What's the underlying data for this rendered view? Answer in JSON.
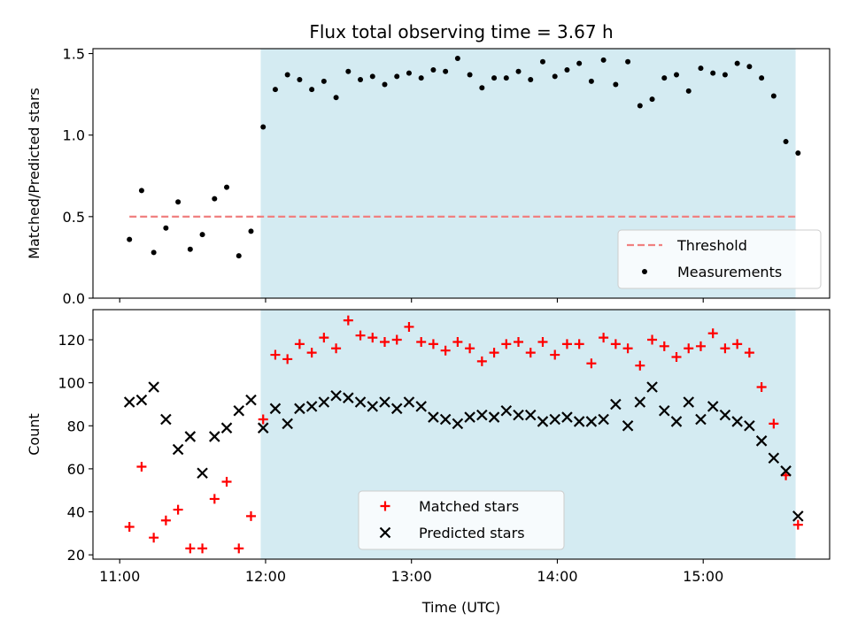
{
  "chart_data": [
    {
      "type": "scatter",
      "title": "Flux total observing time = 3.67 h",
      "xlabel": "",
      "ylabel": "Matched/Predicted stars",
      "ylim": [
        0,
        1.53
      ],
      "yticks": [
        0.0,
        0.5,
        1.0,
        1.5
      ],
      "ytick_labels": [
        "0.0",
        "0.5",
        "1.0",
        "1.5"
      ],
      "xlim": [
        "10:49",
        "15:52"
      ],
      "shaded_span": [
        "11:58",
        "15:38"
      ],
      "shade_color": "#d4ebf2",
      "legend": {
        "placement": "lower-right",
        "entries": [
          "Threshold",
          "Measurements"
        ]
      },
      "threshold": {
        "name": "Threshold",
        "value": 0.5,
        "x_start": "11:04",
        "x_end": "15:38",
        "color": "#f08080",
        "style": "dashed"
      },
      "series": [
        {
          "name": "Measurements",
          "color": "#000000",
          "marker": "dot",
          "x": [
            "11:04",
            "11:09",
            "11:14",
            "11:19",
            "11:24",
            "11:29",
            "11:34",
            "11:39",
            "11:44",
            "11:49",
            "11:54",
            "11:59",
            "12:04",
            "12:09",
            "12:14",
            "12:19",
            "12:24",
            "12:29",
            "12:34",
            "12:39",
            "12:44",
            "12:49",
            "12:54",
            "12:59",
            "13:04",
            "13:09",
            "13:14",
            "13:19",
            "13:24",
            "13:29",
            "13:34",
            "13:39",
            "13:44",
            "13:49",
            "13:54",
            "13:59",
            "14:04",
            "14:09",
            "14:14",
            "14:19",
            "14:24",
            "14:29",
            "14:34",
            "14:39",
            "14:44",
            "14:49",
            "14:54",
            "14:59",
            "15:04",
            "15:09",
            "15:14",
            "15:19",
            "15:24",
            "15:29",
            "15:34",
            "15:39"
          ],
          "y": [
            0.36,
            0.66,
            0.28,
            0.43,
            0.59,
            0.3,
            0.39,
            0.61,
            0.68,
            0.26,
            0.41,
            1.05,
            1.28,
            1.37,
            1.34,
            1.28,
            1.33,
            1.23,
            1.39,
            1.34,
            1.36,
            1.31,
            1.36,
            1.38,
            1.35,
            1.4,
            1.39,
            1.47,
            1.37,
            1.29,
            1.35,
            1.35,
            1.39,
            1.34,
            1.45,
            1.36,
            1.4,
            1.44,
            1.33,
            1.46,
            1.31,
            1.45,
            1.18,
            1.22,
            1.35,
            1.37,
            1.27,
            1.41,
            1.38,
            1.37,
            1.44,
            1.42,
            1.35,
            1.24,
            0.96,
            0.89
          ]
        }
      ]
    },
    {
      "type": "scatter",
      "title": "",
      "xlabel": "Time (UTC)",
      "ylabel": "Count",
      "ylim": [
        18,
        134
      ],
      "yticks": [
        20,
        40,
        60,
        80,
        100,
        120
      ],
      "ytick_labels": [
        "20",
        "40",
        "60",
        "80",
        "100",
        "120"
      ],
      "xlim": [
        "10:49",
        "15:52"
      ],
      "xticks": [
        "11:00",
        "12:00",
        "13:00",
        "14:00",
        "15:00"
      ],
      "xtick_labels": [
        "11:00",
        "12:00",
        "13:00",
        "14:00",
        "15:00"
      ],
      "shaded_span": [
        "11:58",
        "15:38"
      ],
      "shade_color": "#d4ebf2",
      "legend": {
        "placement": "lower-center",
        "entries": [
          "Matched stars",
          "Predicted stars"
        ]
      },
      "series": [
        {
          "name": "Matched stars",
          "color": "#ff0000",
          "marker": "plus",
          "x": [
            "11:04",
            "11:09",
            "11:14",
            "11:19",
            "11:24",
            "11:29",
            "11:34",
            "11:39",
            "11:44",
            "11:49",
            "11:54",
            "11:59",
            "12:04",
            "12:09",
            "12:14",
            "12:19",
            "12:24",
            "12:29",
            "12:34",
            "12:39",
            "12:44",
            "12:49",
            "12:54",
            "12:59",
            "13:04",
            "13:09",
            "13:14",
            "13:19",
            "13:24",
            "13:29",
            "13:34",
            "13:39",
            "13:44",
            "13:49",
            "13:54",
            "13:59",
            "14:04",
            "14:09",
            "14:14",
            "14:19",
            "14:24",
            "14:29",
            "14:34",
            "14:39",
            "14:44",
            "14:49",
            "14:54",
            "14:59",
            "15:04",
            "15:09",
            "15:14",
            "15:19",
            "15:24",
            "15:29",
            "15:34",
            "15:39"
          ],
          "y": [
            33,
            61,
            28,
            36,
            41,
            23,
            23,
            46,
            54,
            23,
            38,
            83,
            113,
            111,
            118,
            114,
            121,
            116,
            129,
            122,
            121,
            119,
            120,
            126,
            119,
            118,
            115,
            119,
            116,
            110,
            114,
            118,
            119,
            114,
            119,
            113,
            118,
            118,
            109,
            121,
            118,
            116,
            108,
            120,
            117,
            112,
            116,
            117,
            123,
            116,
            118,
            114,
            98,
            81,
            57,
            34
          ]
        },
        {
          "name": "Predicted stars",
          "color": "#000000",
          "marker": "cross",
          "x": [
            "11:04",
            "11:09",
            "11:14",
            "11:19",
            "11:24",
            "11:29",
            "11:34",
            "11:39",
            "11:44",
            "11:49",
            "11:54",
            "11:59",
            "12:04",
            "12:09",
            "12:14",
            "12:19",
            "12:24",
            "12:29",
            "12:34",
            "12:39",
            "12:44",
            "12:49",
            "12:54",
            "12:59",
            "13:04",
            "13:09",
            "13:14",
            "13:19",
            "13:24",
            "13:29",
            "13:34",
            "13:39",
            "13:44",
            "13:49",
            "13:54",
            "13:59",
            "14:04",
            "14:09",
            "14:14",
            "14:19",
            "14:24",
            "14:29",
            "14:34",
            "14:39",
            "14:44",
            "14:49",
            "14:54",
            "14:59",
            "15:04",
            "15:09",
            "15:14",
            "15:19",
            "15:24",
            "15:29",
            "15:34",
            "15:39"
          ],
          "y": [
            91,
            92,
            98,
            83,
            69,
            75,
            58,
            75,
            79,
            87,
            92,
            79,
            88,
            81,
            88,
            89,
            91,
            94,
            93,
            91,
            89,
            91,
            88,
            91,
            89,
            84,
            83,
            81,
            84,
            85,
            84,
            87,
            85,
            85,
            82,
            83,
            84,
            82,
            82,
            83,
            90,
            80,
            91,
            98,
            87,
            82,
            91,
            83,
            89,
            85,
            82,
            80,
            73,
            65,
            59,
            38
          ]
        }
      ]
    }
  ]
}
